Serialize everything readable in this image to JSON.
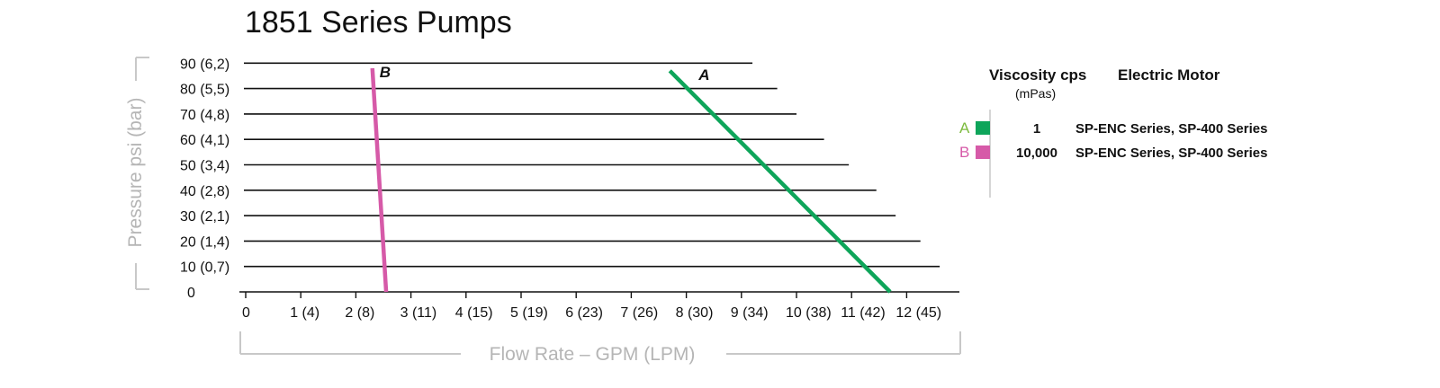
{
  "chart_data": {
    "type": "line",
    "title": "1851 Series Pumps",
    "xlabel": "Flow Rate – GPM (LPM)",
    "ylabel": "Pressure psi (bar)",
    "xlim": [
      0,
      13
    ],
    "ylim": [
      0,
      90
    ],
    "x_ticks": [
      {
        "value": 0,
        "label": "0"
      },
      {
        "value": 1,
        "label": "1 (4)"
      },
      {
        "value": 2,
        "label": "2 (8)"
      },
      {
        "value": 3,
        "label": "3 (11)"
      },
      {
        "value": 4,
        "label": "4 (15)"
      },
      {
        "value": 5,
        "label": "5 (19)"
      },
      {
        "value": 6,
        "label": "6 (23)"
      },
      {
        "value": 7,
        "label": "7 (26)"
      },
      {
        "value": 8,
        "label": "8 (30)"
      },
      {
        "value": 9,
        "label": "9 (34)"
      },
      {
        "value": 10,
        "label": "10 (38)"
      },
      {
        "value": 11,
        "label": "11 (42)"
      },
      {
        "value": 12,
        "label": "12 (45)"
      }
    ],
    "y_ticks": [
      {
        "value": 0,
        "label": "0"
      },
      {
        "value": 10,
        "label": "10  (0,7)"
      },
      {
        "value": 20,
        "label": "20  (1,4)"
      },
      {
        "value": 30,
        "label": "30  (2,1)"
      },
      {
        "value": 40,
        "label": "40  (2,8)"
      },
      {
        "value": 50,
        "label": "50  (3,4)"
      },
      {
        "value": 60,
        "label": "60  (4,1)"
      },
      {
        "value": 70,
        "label": "70  (4,8)"
      },
      {
        "value": 80,
        "label": "80  (5,5)"
      },
      {
        "value": 90,
        "label": "90  (6,2)"
      }
    ],
    "gridlines": [
      {
        "y": 10,
        "x_end": 12.6
      },
      {
        "y": 20,
        "x_end": 12.25
      },
      {
        "y": 30,
        "x_end": 11.8
      },
      {
        "y": 40,
        "x_end": 11.45
      },
      {
        "y": 50,
        "x_end": 10.95
      },
      {
        "y": 60,
        "x_end": 10.5
      },
      {
        "y": 70,
        "x_end": 10.0
      },
      {
        "y": 80,
        "x_end": 9.65
      },
      {
        "y": 90,
        "x_end": 9.2
      }
    ],
    "series": [
      {
        "name": "A",
        "color": "#0ea55a",
        "points": [
          {
            "x": 11.7,
            "y": 0
          },
          {
            "x": 7.7,
            "y": 87
          }
        ]
      },
      {
        "name": "B",
        "color": "#d65aa8",
        "points": [
          {
            "x": 2.55,
            "y": 0
          },
          {
            "x": 2.3,
            "y": 88
          }
        ]
      }
    ],
    "legend": {
      "placement": "right",
      "header_viscosity": "Viscosity cps",
      "header_viscosity_unit": "(mPas)",
      "header_motor": "Electric Motor",
      "entries": [
        {
          "letter": "A",
          "color": "#0ea55a",
          "letter_color": "#7dbb3f",
          "viscosity": "1",
          "motor": "SP-ENC Series, SP-400 Series"
        },
        {
          "letter": "B",
          "color": "#d65aa8",
          "letter_color": "#d65aa8",
          "viscosity": "10,000",
          "motor": "SP-ENC Series, SP-400 Series"
        }
      ]
    }
  }
}
